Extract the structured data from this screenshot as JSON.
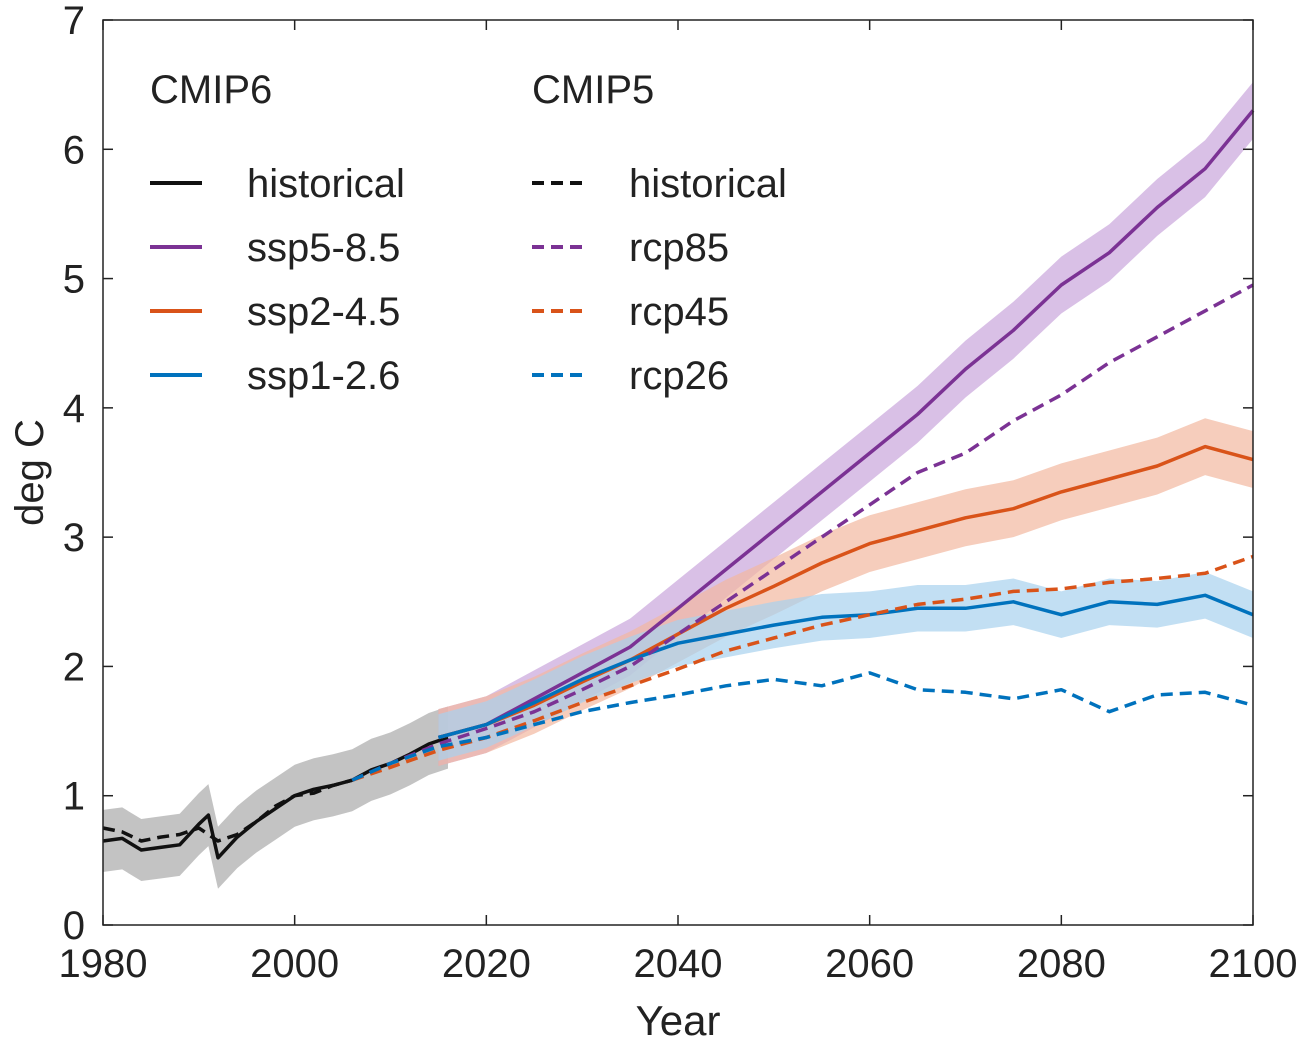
{
  "chart_data": {
    "type": "line",
    "xlabel": "Year",
    "ylabel": "deg C",
    "xlim": [
      1980,
      2100
    ],
    "ylim": [
      0,
      7
    ],
    "xticks": [
      1980,
      2000,
      2020,
      2040,
      2060,
      2080,
      2100
    ],
    "yticks": [
      0,
      1,
      2,
      3,
      4,
      5,
      6,
      7
    ],
    "grid": false,
    "legend_position": "top-left",
    "legend_groups": [
      "CMIP6",
      "CMIP5"
    ],
    "series": [
      {
        "name": "historical",
        "group": "CMIP6",
        "style": "solid",
        "color": "#111111",
        "band_color": "#a9a9a9",
        "x": [
          1980,
          1982,
          1984,
          1986,
          1988,
          1990,
          1991,
          1992,
          1994,
          1996,
          1998,
          2000,
          2002,
          2004,
          2006,
          2008,
          2010,
          2012,
          2014,
          2016
        ],
        "y": [
          0.65,
          0.67,
          0.58,
          0.6,
          0.62,
          0.78,
          0.85,
          0.52,
          0.68,
          0.8,
          0.9,
          1.0,
          1.05,
          1.08,
          1.12,
          1.2,
          1.25,
          1.32,
          1.4,
          1.45
        ],
        "band_width": 0.24
      },
      {
        "name": "ssp5-8.5",
        "group": "CMIP6",
        "style": "solid",
        "color": "#7b3294",
        "band_color": "#c9a5dc",
        "x": [
          2015,
          2020,
          2025,
          2030,
          2035,
          2040,
          2045,
          2050,
          2055,
          2060,
          2065,
          2070,
          2075,
          2080,
          2085,
          2090,
          2095,
          2100
        ],
        "y": [
          1.45,
          1.55,
          1.75,
          1.95,
          2.15,
          2.45,
          2.75,
          3.05,
          3.35,
          3.65,
          3.95,
          4.3,
          4.6,
          4.95,
          5.2,
          5.55,
          5.85,
          6.3
        ],
        "band_width": 0.22
      },
      {
        "name": "ssp2-4.5",
        "group": "CMIP6",
        "style": "solid",
        "color": "#d95319",
        "band_color": "#f2b8a0",
        "x": [
          2015,
          2020,
          2025,
          2030,
          2035,
          2040,
          2045,
          2050,
          2055,
          2060,
          2065,
          2070,
          2075,
          2080,
          2085,
          2090,
          2095,
          2100
        ],
        "y": [
          1.45,
          1.55,
          1.7,
          1.88,
          2.05,
          2.25,
          2.45,
          2.62,
          2.8,
          2.95,
          3.05,
          3.15,
          3.22,
          3.35,
          3.45,
          3.55,
          3.7,
          3.6
        ],
        "band_width": 0.22
      },
      {
        "name": "ssp1-2.6",
        "group": "CMIP6",
        "style": "solid",
        "color": "#0072bd",
        "band_color": "#a8d1ee",
        "x": [
          2015,
          2020,
          2025,
          2030,
          2035,
          2040,
          2045,
          2050,
          2055,
          2060,
          2065,
          2070,
          2075,
          2080,
          2085,
          2090,
          2095,
          2100
        ],
        "y": [
          1.45,
          1.55,
          1.72,
          1.9,
          2.05,
          2.18,
          2.25,
          2.32,
          2.38,
          2.4,
          2.45,
          2.45,
          2.5,
          2.4,
          2.5,
          2.48,
          2.55,
          2.4
        ],
        "band_width": 0.18
      },
      {
        "name": "historical",
        "group": "CMIP5",
        "style": "dashed",
        "color": "#111111",
        "x": [
          1980,
          1982,
          1984,
          1986,
          1988,
          1990,
          1992,
          1994,
          1996,
          1998,
          2000,
          2002,
          2004,
          2006
        ],
        "y": [
          0.75,
          0.72,
          0.65,
          0.68,
          0.7,
          0.75,
          0.65,
          0.7,
          0.8,
          0.92,
          1.0,
          1.02,
          1.08,
          1.12
        ]
      },
      {
        "name": "rcp85",
        "group": "CMIP5",
        "style": "dashed",
        "color": "#7b3294",
        "x": [
          2006,
          2010,
          2015,
          2020,
          2025,
          2030,
          2035,
          2040,
          2045,
          2050,
          2055,
          2060,
          2065,
          2070,
          2075,
          2080,
          2085,
          2090,
          2095,
          2100
        ],
        "y": [
          1.12,
          1.25,
          1.4,
          1.52,
          1.65,
          1.82,
          2.0,
          2.25,
          2.5,
          2.75,
          3.0,
          3.25,
          3.5,
          3.65,
          3.9,
          4.1,
          4.35,
          4.55,
          4.75,
          4.95
        ]
      },
      {
        "name": "rcp45",
        "group": "CMIP5",
        "style": "dashed",
        "color": "#d95319",
        "x": [
          2006,
          2010,
          2015,
          2020,
          2025,
          2030,
          2035,
          2040,
          2045,
          2050,
          2055,
          2060,
          2065,
          2070,
          2075,
          2080,
          2085,
          2090,
          2095,
          2100
        ],
        "y": [
          1.12,
          1.22,
          1.35,
          1.45,
          1.58,
          1.72,
          1.85,
          1.98,
          2.12,
          2.22,
          2.32,
          2.4,
          2.48,
          2.52,
          2.58,
          2.6,
          2.65,
          2.68,
          2.72,
          2.85
        ]
      },
      {
        "name": "rcp26",
        "group": "CMIP5",
        "style": "dashed",
        "color": "#0072bd",
        "x": [
          2006,
          2010,
          2015,
          2020,
          2025,
          2030,
          2035,
          2040,
          2045,
          2050,
          2055,
          2060,
          2065,
          2070,
          2075,
          2080,
          2085,
          2090,
          2095,
          2100
        ],
        "y": [
          1.12,
          1.25,
          1.38,
          1.45,
          1.55,
          1.65,
          1.72,
          1.78,
          1.85,
          1.9,
          1.85,
          1.95,
          1.82,
          1.8,
          1.75,
          1.82,
          1.65,
          1.78,
          1.8,
          1.7
        ]
      }
    ]
  }
}
